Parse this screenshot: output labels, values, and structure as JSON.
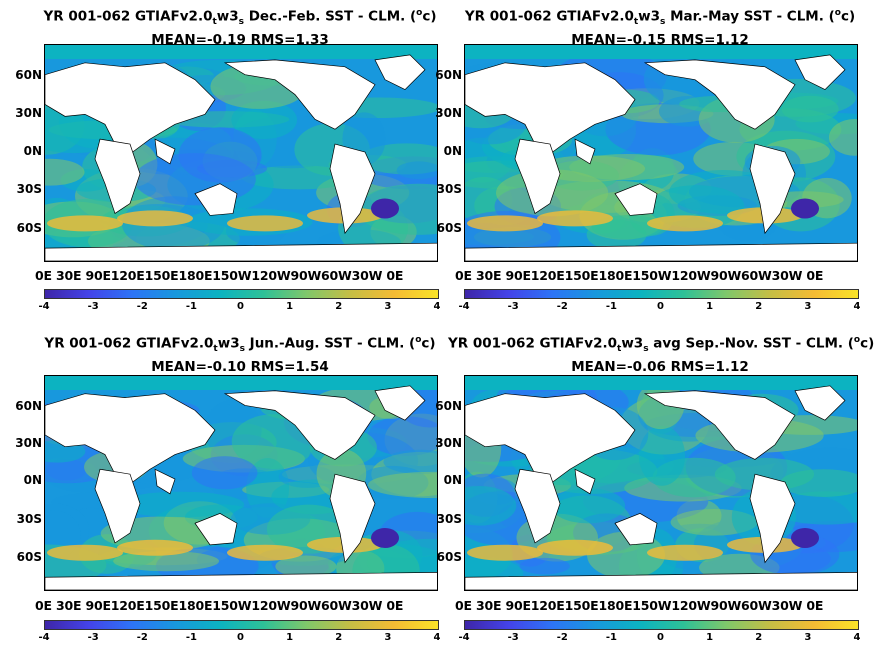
{
  "colors": {
    "land": "#ffffff",
    "colormap": [
      "#3e26a8",
      "#4443e8",
      "#2d74f6",
      "#1898dd",
      "#0cb3c1",
      "#2ec197",
      "#80c76a",
      "#c6be45",
      "#f5bb34",
      "#f9e328"
    ]
  },
  "lat_labels": [
    "60N",
    "30N",
    "0N",
    "30S",
    "60S"
  ],
  "lon_labels": "0E  30E  90E120E150E180E150W120W90W60W30W  0E",
  "colorbar_ticks": [
    "-4",
    "-3",
    "-2",
    "-1",
    "0",
    "1",
    "2",
    "3",
    "4"
  ],
  "panels": [
    {
      "title_a": "YR 001-062 GTIAFv2.0",
      "sub1": "t",
      "mid": "w3",
      "sub2": "s",
      "title_b": " Dec.-Feb. SST - CLM. (",
      "sup": "o",
      "title_c": "c)",
      "stats": "MEAN=-0.19   RMS=1.33"
    },
    {
      "title_a": "YR 001-062 GTIAFv2.0",
      "sub1": "t",
      "mid": "w3",
      "sub2": "s",
      "title_b": " Mar.-May SST - CLM. (",
      "sup": "o",
      "title_c": "c)",
      "stats": "MEAN=-0.15   RMS=1.12"
    },
    {
      "title_a": "YR 001-062 GTIAFv2.0",
      "sub1": "t",
      "mid": "w3",
      "sub2": "s",
      "title_b": " Jun.-Aug. SST - CLM. (",
      "sup": "o",
      "title_c": "c)",
      "stats": "MEAN=-0.10   RMS=1.54"
    },
    {
      "title_a": "YR 001-062 GTIAFv2.0",
      "sub1": "t",
      "mid": "w3",
      "sub2": "s",
      "title_b": " avg Sep.-Nov. SST - CLM. (",
      "sup": "o",
      "title_c": "c)",
      "stats": "MEAN=-0.06   RMS=1.12"
    }
  ]
}
